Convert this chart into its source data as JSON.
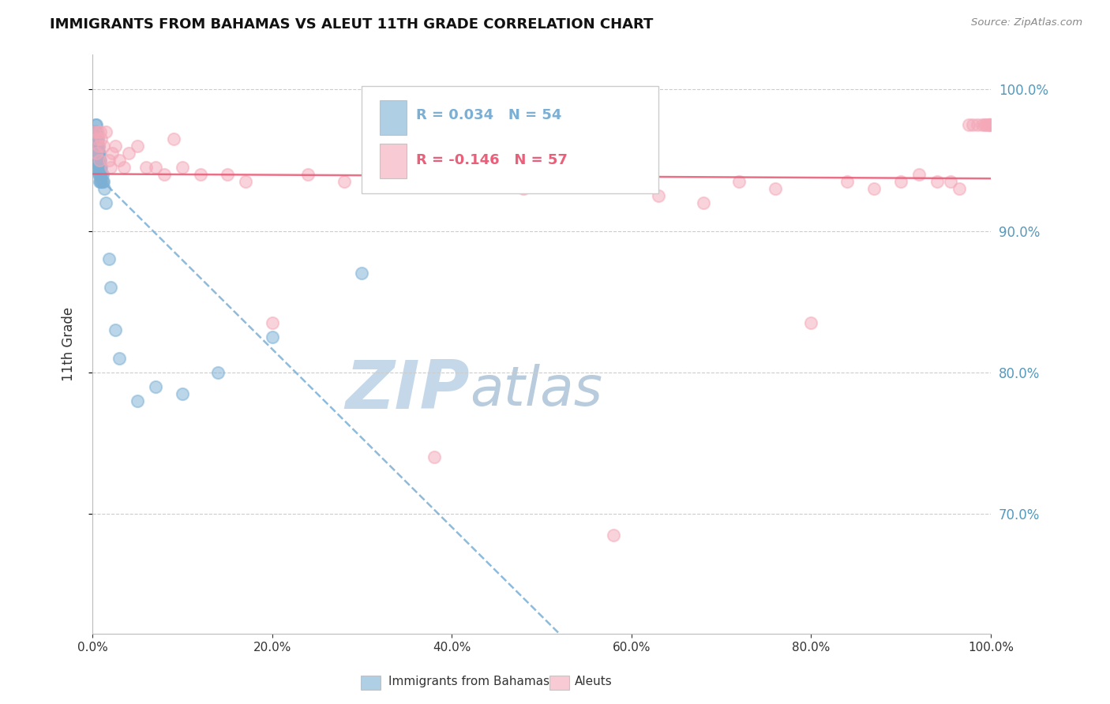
{
  "title": "IMMIGRANTS FROM BAHAMAS VS ALEUT 11TH GRADE CORRELATION CHART",
  "source_text": "Source: ZipAtlas.com",
  "ylabel": "11th Grade",
  "legend_label1": "Immigrants from Bahamas",
  "legend_label2": "Aleuts",
  "R1": 0.034,
  "N1": 54,
  "R2": -0.146,
  "N2": 57,
  "blue_color": "#7BAFD4",
  "pink_color": "#F4A8B8",
  "blue_line_color": "#7BAFD4",
  "pink_line_color": "#E8607A",
  "watermark_zip_color": "#C8D8E8",
  "watermark_atlas_color": "#B8C8D8",
  "right_axis_color": "#5599BB",
  "xlim": [
    0.0,
    1.0
  ],
  "ylim": [
    0.615,
    1.025
  ],
  "yticks": [
    0.7,
    0.8,
    0.9,
    1.0
  ],
  "xticks": [
    0.0,
    0.2,
    0.4,
    0.6,
    0.8,
    1.0
  ],
  "blue_x": [
    0.001,
    0.001,
    0.002,
    0.002,
    0.003,
    0.003,
    0.003,
    0.004,
    0.004,
    0.004,
    0.004,
    0.004,
    0.004,
    0.005,
    0.005,
    0.005,
    0.005,
    0.006,
    0.006,
    0.006,
    0.006,
    0.006,
    0.007,
    0.007,
    0.007,
    0.007,
    0.007,
    0.008,
    0.008,
    0.008,
    0.008,
    0.008,
    0.009,
    0.009,
    0.009,
    0.009,
    0.01,
    0.01,
    0.01,
    0.011,
    0.011,
    0.012,
    0.013,
    0.015,
    0.018,
    0.02,
    0.025,
    0.03,
    0.05,
    0.07,
    0.1,
    0.14,
    0.2,
    0.3
  ],
  "blue_y": [
    0.97,
    0.965,
    0.97,
    0.96,
    0.975,
    0.97,
    0.96,
    0.975,
    0.97,
    0.965,
    0.96,
    0.955,
    0.95,
    0.965,
    0.96,
    0.955,
    0.95,
    0.965,
    0.96,
    0.955,
    0.95,
    0.945,
    0.96,
    0.955,
    0.95,
    0.945,
    0.94,
    0.955,
    0.95,
    0.945,
    0.94,
    0.935,
    0.95,
    0.945,
    0.94,
    0.935,
    0.945,
    0.94,
    0.935,
    0.94,
    0.935,
    0.935,
    0.93,
    0.92,
    0.88,
    0.86,
    0.83,
    0.81,
    0.78,
    0.79,
    0.785,
    0.8,
    0.825,
    0.87
  ],
  "pink_x": [
    0.002,
    0.004,
    0.005,
    0.006,
    0.007,
    0.008,
    0.009,
    0.01,
    0.012,
    0.015,
    0.018,
    0.02,
    0.022,
    0.025,
    0.03,
    0.035,
    0.04,
    0.05,
    0.06,
    0.07,
    0.08,
    0.09,
    0.1,
    0.12,
    0.15,
    0.17,
    0.2,
    0.24,
    0.28,
    0.33,
    0.38,
    0.43,
    0.48,
    0.53,
    0.58,
    0.63,
    0.68,
    0.72,
    0.76,
    0.8,
    0.84,
    0.87,
    0.9,
    0.92,
    0.94,
    0.955,
    0.965,
    0.975,
    0.98,
    0.985,
    0.99,
    0.993,
    0.995,
    0.997,
    0.998,
    0.999,
    0.9995
  ],
  "pink_y": [
    0.97,
    0.955,
    0.965,
    0.97,
    0.96,
    0.95,
    0.97,
    0.965,
    0.96,
    0.97,
    0.95,
    0.945,
    0.955,
    0.96,
    0.95,
    0.945,
    0.955,
    0.96,
    0.945,
    0.945,
    0.94,
    0.965,
    0.945,
    0.94,
    0.94,
    0.935,
    0.835,
    0.94,
    0.935,
    0.935,
    0.74,
    0.935,
    0.93,
    0.935,
    0.685,
    0.925,
    0.92,
    0.935,
    0.93,
    0.835,
    0.935,
    0.93,
    0.935,
    0.94,
    0.935,
    0.935,
    0.93,
    0.975,
    0.975,
    0.975,
    0.975,
    0.975,
    0.975,
    0.975,
    0.975,
    0.975,
    0.975
  ]
}
